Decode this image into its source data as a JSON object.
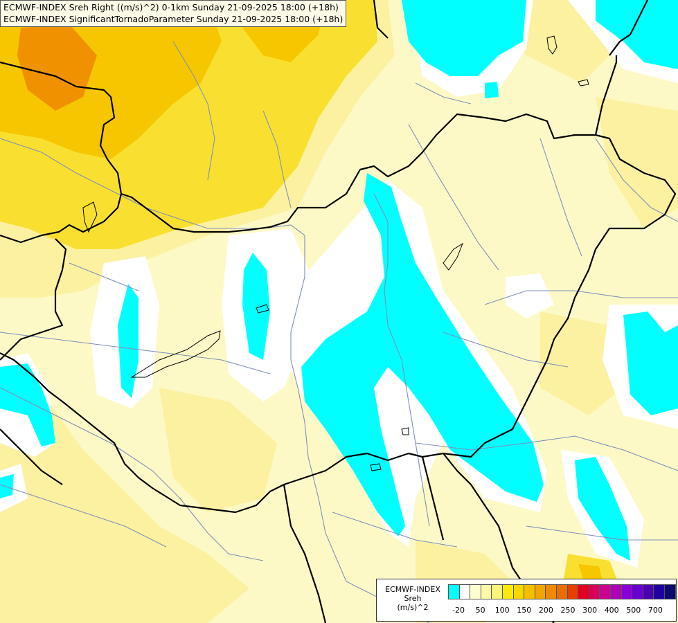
{
  "title_lines": [
    "ECMWF-INDEX Sreh Right ((m/s)^2) 0-1km Sunday 21-09-2025 18:00 (+18h)",
    "ECMWF-INDEX SignificantTornadoParameter Sunday 21-09-2025 18:00 (+18h)"
  ],
  "legend": {
    "source": "ECMWF-INDEX",
    "variable": "Sreh",
    "unit": "(m/s)^2",
    "tick_labels": [
      "-20",
      "50",
      "100",
      "150",
      "200",
      "250",
      "300",
      "400",
      "500",
      "700"
    ],
    "swatch_colors": [
      "#00ffff",
      "#ffffff",
      "#fefdcf",
      "#fdf9a9",
      "#fbf47b",
      "#f9ec00",
      "#f9d800",
      "#f5bf00",
      "#f2a400",
      "#f08a00",
      "#eb6c00",
      "#e64000",
      "#e20020",
      "#d8005a",
      "#c80090",
      "#b000b8",
      "#8a00d6",
      "#6a00d0",
      "#4a00b0",
      "#1f00a0",
      "#0a0a70"
    ]
  },
  "field_colors": {
    "negative": "#00ffff",
    "near_zero": "#ffffff",
    "low": "#fdf9c6",
    "moderate": "#fbf1a0",
    "elevated": "#f9e030",
    "high": "#f6c700",
    "very_high": "#f09200"
  }
}
